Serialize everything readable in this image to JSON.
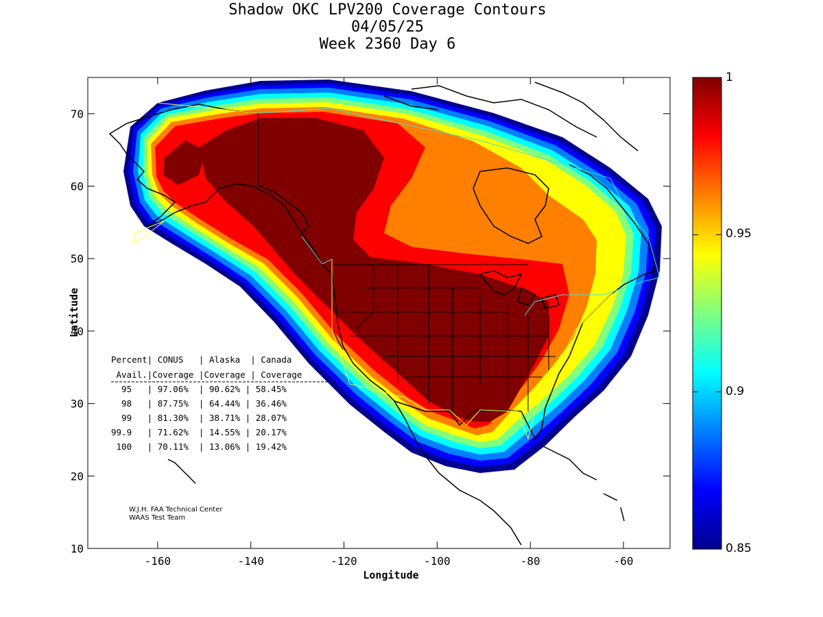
{
  "title": {
    "line1": "Shadow OKC LPV200 Coverage Contours",
    "line2": "04/05/25",
    "line3": "Week 2360 Day 6"
  },
  "axes": {
    "xlabel": "Longitude",
    "ylabel": "Latitude",
    "xlim": [
      -175,
      -50
    ],
    "ylim": [
      10,
      75
    ],
    "xticks": [
      "-160",
      "-140",
      "-120",
      "-100",
      "-80",
      "-60"
    ],
    "xtick_values": [
      -160,
      -140,
      -120,
      -100,
      -80,
      -60
    ],
    "yticks": [
      "10",
      "20",
      "30",
      "40",
      "50",
      "60",
      "70"
    ],
    "ytick_values": [
      10,
      20,
      30,
      40,
      50,
      60,
      70
    ]
  },
  "colorbar": {
    "min": 0.85,
    "max": 1,
    "labels": [
      "1",
      "0.95",
      "0.9",
      "0.85"
    ],
    "label_values": [
      1,
      0.95,
      0.9,
      0.85
    ]
  },
  "stats_table": {
    "header1": "Percent| CONUS   | Alaska  | Canada",
    "header2": " Avail.|Coverage |Coverage | Coverage",
    "rows": [
      "  95   | 97.06%  | 90.62% | 58.45%",
      "  98   | 87.75%  | 64.44% | 36.46%",
      "  99   | 81.30%  | 38.71% | 28.07%",
      "99.9   | 71.62%  | 14.55% | 20.17%",
      " 100   | 70.11%  | 13.06% | 19.42%"
    ]
  },
  "credits": {
    "line1": "W.J.H. FAA Technical Center",
    "line2": "WAAS Test Team"
  }
}
